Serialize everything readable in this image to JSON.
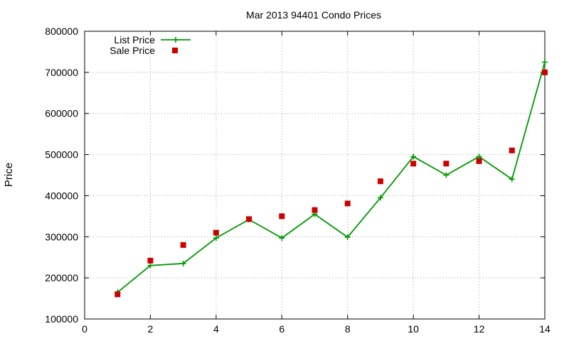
{
  "chart_data": {
    "type": "line",
    "title": "Mar 2013 94401 Condo Prices",
    "xlabel": "",
    "ylabel": "Price",
    "xlim": [
      0,
      14
    ],
    "ylim": [
      100000,
      800000
    ],
    "x_ticks": [
      0,
      2,
      4,
      6,
      8,
      10,
      12,
      14
    ],
    "y_ticks": [
      100000,
      200000,
      300000,
      400000,
      500000,
      600000,
      700000,
      800000
    ],
    "grid": true,
    "legend_position": "top-left",
    "series": [
      {
        "name": "List Price",
        "style": "line+points",
        "marker": "plus",
        "color": "#009900",
        "x": [
          1,
          2,
          3,
          4,
          5,
          6,
          7,
          8,
          9,
          10,
          11,
          12,
          13,
          14
        ],
        "values": [
          165000,
          230000,
          235000,
          297000,
          342000,
          297000,
          355000,
          299000,
          395000,
          495000,
          450000,
          495000,
          440000,
          725000
        ]
      },
      {
        "name": "Sale Price",
        "style": "points",
        "marker": "square",
        "color": "#cc0000",
        "x": [
          1,
          2,
          3,
          4,
          5,
          6,
          7,
          8,
          9,
          10,
          11,
          12,
          13,
          14
        ],
        "values": [
          160000,
          242000,
          280000,
          310000,
          343000,
          350000,
          365000,
          381000,
          435000,
          478000,
          478000,
          484000,
          510000,
          700000
        ]
      }
    ]
  }
}
